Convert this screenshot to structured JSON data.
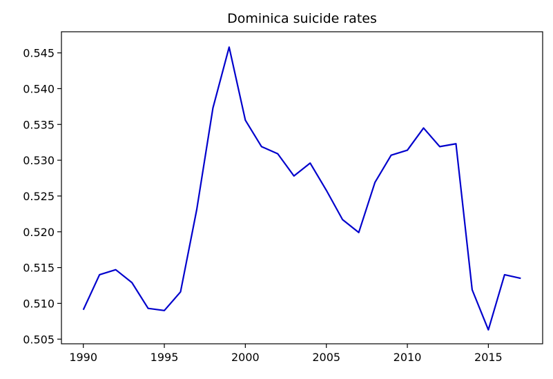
{
  "chart_data": {
    "type": "line",
    "title": "Dominica suicide rates",
    "xlabel": "",
    "ylabel": "",
    "x": [
      1990,
      1991,
      1992,
      1993,
      1994,
      1995,
      1996,
      1997,
      1998,
      1999,
      2000,
      2001,
      2002,
      2003,
      2004,
      2005,
      2006,
      2007,
      2008,
      2009,
      2010,
      2011,
      2012,
      2013,
      2014,
      2015,
      2016,
      2017
    ],
    "series": [
      {
        "values": [
          0.5091,
          0.514,
          0.5147,
          0.5129,
          0.5093,
          0.509,
          0.5116,
          0.5231,
          0.5373,
          0.5458,
          0.5356,
          0.5319,
          0.5309,
          0.5278,
          0.5296,
          0.5258,
          0.5217,
          0.5199,
          0.5269,
          0.5307,
          0.5314,
          0.5345,
          0.5319,
          0.5323,
          0.5119,
          0.5063,
          0.514,
          0.5135
        ],
        "color": "#0000cc"
      }
    ],
    "xlim": [
      1988.65,
      2018.35
    ],
    "ylim": [
      0.50435,
      0.54795
    ],
    "x_ticks": [
      1990,
      1995,
      2000,
      2005,
      2010,
      2015
    ],
    "x_tick_labels": [
      "1990",
      "1995",
      "2000",
      "2005",
      "2010",
      "2015"
    ],
    "y_ticks": [
      0.505,
      0.51,
      0.515,
      0.52,
      0.525,
      0.53,
      0.535,
      0.54,
      0.545
    ],
    "y_tick_labels": [
      "0.505",
      "0.510",
      "0.515",
      "0.520",
      "0.525",
      "0.530",
      "0.535",
      "0.540",
      "0.545"
    ],
    "grid": false,
    "legend": "none"
  }
}
